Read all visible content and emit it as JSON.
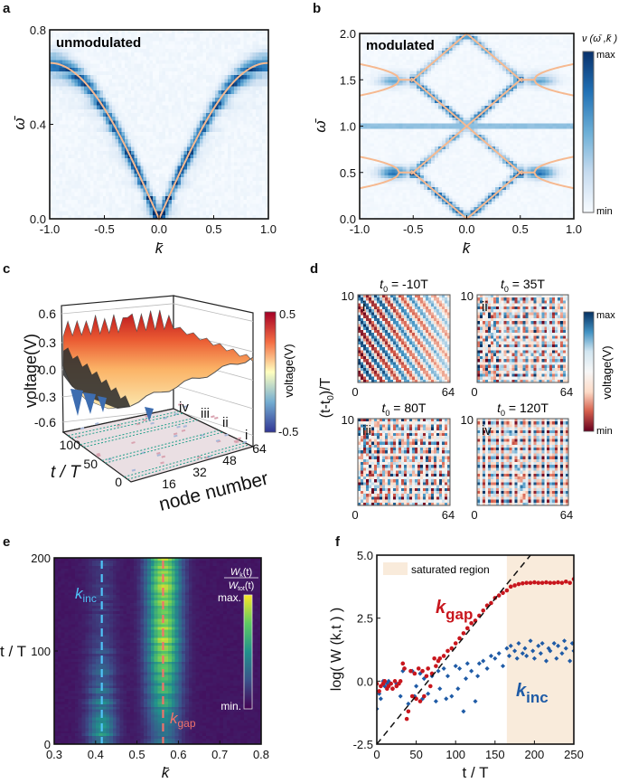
{
  "chart_data": [
    {
      "panel_label": "a",
      "type": "heatmap",
      "annotation": "unmodulated",
      "xlabel": "k̄",
      "ylabel": "ω̄",
      "xlim": [
        -1.0,
        1.0
      ],
      "ylim": [
        0.0,
        0.8
      ],
      "xticks": [
        "-1.0",
        "-0.5",
        "0.0",
        "0.5",
        "1.0"
      ],
      "yticks": [
        "0.0",
        "0.4",
        "0.8"
      ],
      "colormap_stops": [
        "#f7fbff",
        "#c6dbef",
        "#6baed6",
        "#2171b5",
        "#08306b"
      ],
      "overlay_color": "#f6b990",
      "overlay_curve": {
        "k": [
          -1.0,
          -0.75,
          -0.5,
          -0.25,
          0.0,
          0.25,
          0.5,
          0.75,
          1.0
        ],
        "omega": [
          0.66,
          0.61,
          0.47,
          0.25,
          0.0,
          0.25,
          0.47,
          0.61,
          0.66
        ]
      }
    },
    {
      "panel_label": "b",
      "type": "heatmap",
      "annotation": "modulated",
      "xlabel": "k̄",
      "ylabel": "ω̄",
      "xlim": [
        -1.0,
        1.0
      ],
      "ylim": [
        0.0,
        2.0
      ],
      "xticks": [
        "-1.0",
        "-0.5",
        "0.0",
        "0.5",
        "1.0"
      ],
      "yticks": [
        "0.0",
        "0.5",
        "1.0",
        "1.5",
        "2.0"
      ],
      "colormap_stops": [
        "#f7fbff",
        "#c6dbef",
        "#6baed6",
        "#2171b5",
        "#08306b"
      ],
      "overlay_color": "#f6b990",
      "band_lines": [
        [
          [
            -0.52,
            0.52
          ],
          [
            0.0,
            0.0
          ],
          [
            0.52,
            0.52
          ]
        ],
        [
          [
            -0.52,
            0.48
          ],
          [
            0.0,
            1.0
          ],
          [
            0.52,
            0.48
          ]
        ],
        [
          [
            -0.52,
            1.52
          ],
          [
            0.0,
            1.0
          ],
          [
            0.52,
            1.52
          ]
        ],
        [
          [
            -0.52,
            1.48
          ],
          [
            0.0,
            2.0
          ],
          [
            0.52,
            1.48
          ]
        ],
        [
          [
            0.52,
            0.5
          ],
          [
            0.63,
            0.5
          ]
        ],
        [
          [
            -0.52,
            0.5
          ],
          [
            -0.63,
            0.5
          ]
        ],
        [
          [
            0.52,
            1.5
          ],
          [
            0.63,
            1.5
          ]
        ],
        [
          [
            -0.52,
            1.5
          ],
          [
            -0.63,
            1.5
          ]
        ]
      ],
      "gap_branches": [
        {
          "omega": 0.5,
          "k_tip": 0.63,
          "omega_at_edge": [
            0.33,
            0.67
          ]
        },
        {
          "omega": 1.5,
          "k_tip": 0.63,
          "omega_at_edge": [
            1.33,
            1.67
          ]
        }
      ],
      "colorbar": {
        "title": "ν (ω̄ ,k̄ )",
        "max": "max",
        "min": "min"
      }
    },
    {
      "panel_label": "c",
      "type": "surface",
      "zlabel": "voltage(V)",
      "zticks": [
        "0.6",
        "0.3",
        "0.0",
        "-0.3",
        "-0.6"
      ],
      "ylabel": "t / T",
      "yticks": [
        "100",
        "50",
        "0"
      ],
      "xlabel": "node number",
      "xticks": [
        "16",
        "32",
        "48",
        "64"
      ],
      "slice_labels": [
        "iv",
        "iii",
        "ii",
        "i"
      ],
      "colorbar": {
        "title": "voltage(V)",
        "max": "0.5",
        "min": "-0.5",
        "stops": [
          "#313695",
          "#74add1",
          "#ffffbf",
          "#f46d43",
          "#a50026"
        ]
      }
    },
    {
      "panel_label": "d",
      "type": "heatmap",
      "ylabel_parts": [
        "(t-t",
        "0",
        ")/T"
      ],
      "colormap_stops": [
        "#67001f",
        "#d6604d",
        "#fddbc7",
        "#f7f7f7",
        "#d1e5f0",
        "#4393c3",
        "#053061"
      ],
      "colorbar": {
        "title": "voltage(V)",
        "max": "max",
        "min": "min"
      },
      "subplots": [
        {
          "label": "i",
          "t_sym": "t",
          "t_sub": "0",
          "t_value": " = -10T",
          "ymax": "10",
          "xmin": "0",
          "xmax": "64"
        },
        {
          "label": "ii",
          "t_sym": "t",
          "t_sub": "0",
          "t_value": " = 35T",
          "ymax": "10",
          "xmin": "0",
          "xmax": "64"
        },
        {
          "label": "iii",
          "t_sym": "t",
          "t_sub": "0",
          "t_value": " = 80T",
          "ymax": "10",
          "xmin": "0",
          "xmax": "64"
        },
        {
          "label": "iv",
          "t_sym": "t",
          "t_sub": "0",
          "t_value": " = 120T",
          "ymax": "10",
          "xmin": "0",
          "xmax": "64"
        }
      ]
    },
    {
      "panel_label": "e",
      "type": "heatmap",
      "xlabel": "k̄",
      "ylabel": "t / T",
      "xlim": [
        0.3,
        0.8
      ],
      "ylim": [
        0,
        200
      ],
      "xticks": [
        "0.3",
        "0.4",
        "0.5",
        "0.6",
        "0.7",
        "0.8"
      ],
      "yticks": [
        "0",
        "100",
        "200"
      ],
      "colormap_stops": [
        "#440154",
        "#3b528b",
        "#21918c",
        "#5ec962",
        "#fde725"
      ],
      "markers": [
        {
          "name": "k",
          "sub": "inc",
          "k": 0.415,
          "color": "#4fc3f7"
        },
        {
          "name": "k",
          "sub": "gap",
          "k": 0.563,
          "color": "#f2726b"
        }
      ],
      "colorbar": {
        "num": "W",
        "num_sub": "k",
        "num_arg": "(t)",
        "den": "W",
        "den_sub": "tot",
        "den_arg": "(t)",
        "max": "max.",
        "min": "min."
      }
    },
    {
      "panel_label": "f",
      "type": "scatter",
      "xlabel": "t / T",
      "ylabel": "log( W (k,t ) )",
      "xlim": [
        0,
        250
      ],
      "ylim": [
        -2.5,
        5.0
      ],
      "xticks": [
        "0",
        "50",
        "100",
        "150",
        "200",
        "250"
      ],
      "yticks": [
        "-2.5",
        "0.0",
        "2.5",
        "5.0"
      ],
      "shaded_region": {
        "label": "saturated region",
        "t": [
          165,
          250
        ],
        "color": "#f9ebdb"
      },
      "fit_line": {
        "t": [
          0,
          195
        ],
        "y": [
          -2.5,
          5.0
        ]
      },
      "series": [
        {
          "name": "k",
          "sub": "gap",
          "color": "#c8161d",
          "t": [
            0,
            3,
            5,
            8,
            10,
            13,
            15,
            18,
            20,
            23,
            25,
            28,
            30,
            33,
            35,
            38,
            40,
            43,
            45,
            48,
            50,
            53,
            55,
            58,
            60,
            63,
            65,
            68,
            70,
            73,
            75,
            78,
            80,
            85,
            90,
            95,
            100,
            105,
            110,
            115,
            120,
            125,
            130,
            135,
            140,
            145,
            150,
            155,
            160,
            165,
            170,
            175,
            180,
            185,
            190,
            195,
            200,
            205,
            210,
            215,
            220,
            225,
            230,
            235,
            240,
            245,
            250
          ],
          "y": [
            -0.1,
            -0.4,
            -0.2,
            -0.1,
            0.0,
            -0.3,
            -0.2,
            -0.1,
            -0.3,
            0.0,
            -0.2,
            -0.1,
            0.0,
            0.7,
            0.5,
            -1.5,
            -1.2,
            0.4,
            -0.6,
            0.3,
            -0.7,
            0.5,
            -0.8,
            0.4,
            -0.6,
            0.2,
            0.5,
            -0.2,
            0.3,
            0.9,
            0.6,
            0.8,
            0.9,
            1.0,
            1.2,
            1.3,
            1.5,
            1.7,
            1.9,
            2.1,
            2.3,
            2.4,
            2.6,
            2.8,
            3.0,
            3.1,
            3.3,
            3.4,
            3.5,
            3.6,
            3.75,
            3.8,
            3.85,
            3.88,
            3.9,
            3.9,
            3.92,
            3.9,
            3.9,
            3.92,
            3.9,
            3.9,
            3.92,
            3.9,
            3.95,
            3.9,
            4.05
          ]
        },
        {
          "name": "k",
          "sub": "inc",
          "color": "#1f5ba6",
          "t": [
            0,
            3,
            5,
            8,
            10,
            13,
            15,
            20,
            25,
            30,
            33,
            35,
            40,
            45,
            48,
            50,
            55,
            58,
            60,
            65,
            70,
            75,
            78,
            80,
            85,
            88,
            90,
            95,
            100,
            103,
            105,
            110,
            113,
            115,
            120,
            125,
            128,
            130,
            135,
            140,
            145,
            150,
            155,
            160,
            165,
            168,
            170,
            175,
            178,
            180,
            185,
            188,
            190,
            195,
            198,
            200,
            205,
            208,
            210,
            215,
            218,
            220,
            225,
            228,
            230,
            235,
            238,
            240,
            245,
            248,
            250
          ],
          "y": [
            -1.1,
            -0.5,
            -0.7,
            0.0,
            -0.2,
            -0.1,
            0.0,
            -0.3,
            -0.1,
            -0.6,
            0.4,
            0.5,
            -0.9,
            0.4,
            -0.6,
            -0.2,
            0.3,
            -0.7,
            0.1,
            -0.5,
            0.2,
            -0.8,
            0.4,
            -0.3,
            0.5,
            -0.7,
            0.2,
            -0.6,
            0.6,
            -0.3,
            0.5,
            -1.2,
            0.1,
            0.7,
            0.4,
            -0.8,
            0.2,
            0.7,
            0.8,
            0.5,
            1.0,
            0.9,
            1.1,
            0.6,
            1.3,
            1.0,
            1.4,
            1.2,
            0.9,
            1.5,
            1.1,
            1.3,
            1.0,
            1.6,
            1.2,
            0.9,
            1.4,
            1.1,
            1.5,
            0.8,
            1.3,
            1.2,
            1.5,
            0.9,
            1.4,
            1.1,
            1.6,
            1.3,
            0.8,
            1.5,
            1.2
          ]
        }
      ]
    }
  ]
}
